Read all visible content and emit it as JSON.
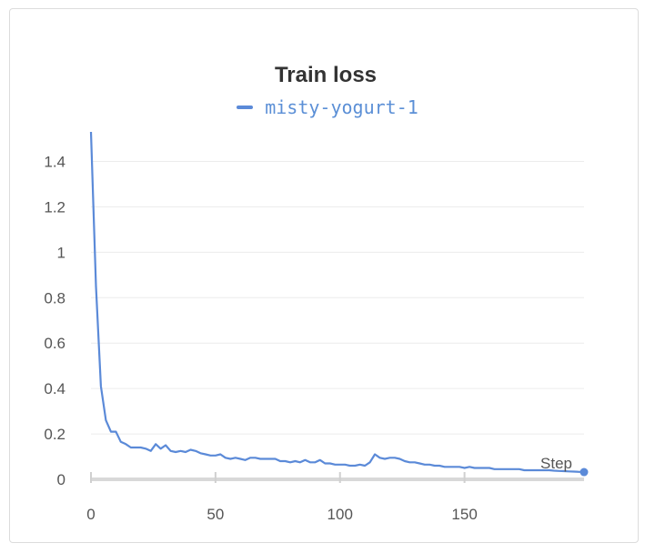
{
  "chart_data": {
    "type": "line",
    "title": "Train loss",
    "xlabel": "Step",
    "ylabel": "",
    "xlim": [
      0,
      198
    ],
    "ylim": [
      0,
      1.55
    ],
    "xticks": [
      0,
      50,
      100,
      150
    ],
    "yticks": [
      0,
      0.2,
      0.4,
      0.6,
      0.8,
      1,
      1.2,
      1.4
    ],
    "ytick_labels": [
      "0",
      "0.2",
      "0.4",
      "0.6",
      "0.8",
      "1",
      "1.2",
      "1.4"
    ],
    "grid": true,
    "legend_position": "top-center",
    "series": [
      {
        "name": "misty-yogurt-1",
        "color": "#5b8ad8",
        "x": [
          0,
          2,
          4,
          6,
          8,
          10,
          12,
          14,
          16,
          18,
          20,
          22,
          24,
          26,
          28,
          30,
          32,
          34,
          36,
          38,
          40,
          42,
          44,
          46,
          48,
          50,
          52,
          54,
          56,
          58,
          60,
          62,
          64,
          66,
          68,
          70,
          72,
          74,
          76,
          78,
          80,
          82,
          84,
          86,
          88,
          90,
          92,
          94,
          96,
          98,
          100,
          102,
          104,
          106,
          108,
          110,
          112,
          114,
          116,
          118,
          120,
          122,
          124,
          126,
          128,
          130,
          132,
          134,
          136,
          138,
          140,
          142,
          144,
          146,
          148,
          150,
          152,
          154,
          156,
          158,
          160,
          162,
          164,
          166,
          168,
          170,
          172,
          174,
          176,
          178,
          180,
          182,
          184,
          186,
          188,
          190,
          192,
          194,
          196,
          198
        ],
        "y": [
          1.53,
          0.85,
          0.41,
          0.26,
          0.21,
          0.21,
          0.165,
          0.155,
          0.14,
          0.14,
          0.14,
          0.135,
          0.125,
          0.155,
          0.135,
          0.15,
          0.125,
          0.12,
          0.125,
          0.12,
          0.13,
          0.125,
          0.115,
          0.11,
          0.105,
          0.105,
          0.11,
          0.095,
          0.09,
          0.095,
          0.09,
          0.085,
          0.095,
          0.095,
          0.09,
          0.09,
          0.09,
          0.09,
          0.08,
          0.08,
          0.075,
          0.08,
          0.075,
          0.085,
          0.075,
          0.075,
          0.085,
          0.07,
          0.07,
          0.065,
          0.065,
          0.065,
          0.06,
          0.06,
          0.065,
          0.06,
          0.075,
          0.11,
          0.095,
          0.09,
          0.095,
          0.095,
          0.09,
          0.08,
          0.075,
          0.075,
          0.07,
          0.065,
          0.065,
          0.06,
          0.06,
          0.055,
          0.055,
          0.055,
          0.055,
          0.05,
          0.055,
          0.05,
          0.05,
          0.05,
          0.05,
          0.045,
          0.045,
          0.045,
          0.045,
          0.045,
          0.045,
          0.04,
          0.04,
          0.04,
          0.04,
          0.04,
          0.04,
          0.038,
          0.037,
          0.036,
          0.035,
          0.034,
          0.033,
          0.032
        ]
      }
    ]
  }
}
